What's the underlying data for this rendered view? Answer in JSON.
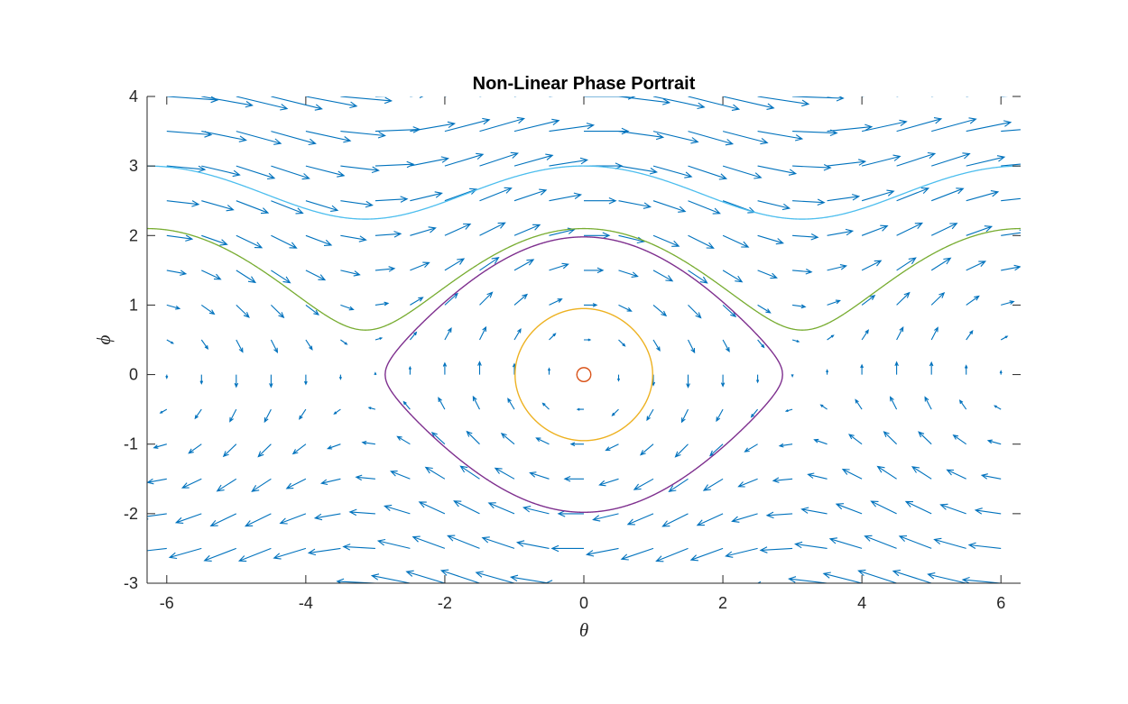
{
  "chart_data": {
    "type": "quiver",
    "title": "Non-Linear Phase Portrait",
    "xlabel": "θ",
    "ylabel": "ϕ",
    "xlim": [
      -6.283,
      6.283
    ],
    "ylim": [
      -3,
      4
    ],
    "xticks": [
      "-6",
      "-4",
      "-2",
      "0",
      "2",
      "4",
      "6"
    ],
    "yticks": [
      "-3",
      "-2",
      "-1",
      "0",
      "1",
      "2",
      "3",
      "4"
    ],
    "grid": false,
    "vector_field": {
      "equations": [
        "dθ/dt = ϕ",
        "dϕ/dt = -sin(θ)"
      ],
      "x_range": [
        -6,
        6
      ],
      "x_step": 0.5,
      "y_range": [
        -3,
        4
      ],
      "y_step": 0.5,
      "color": "#0072BD"
    },
    "trajectories": [
      {
        "energy_phi_at_theta0": 0.1,
        "color": "#D95319"
      },
      {
        "energy_phi_at_theta0": 0.95,
        "color": "#EDB120"
      },
      {
        "energy_phi_at_theta0": 1.98,
        "color": "#7E2F8E"
      },
      {
        "energy_phi_at_theta0": 2.1,
        "color": "#77AC30"
      },
      {
        "energy_phi_at_theta0": 3.0,
        "color": "#4DBEEE"
      }
    ]
  }
}
